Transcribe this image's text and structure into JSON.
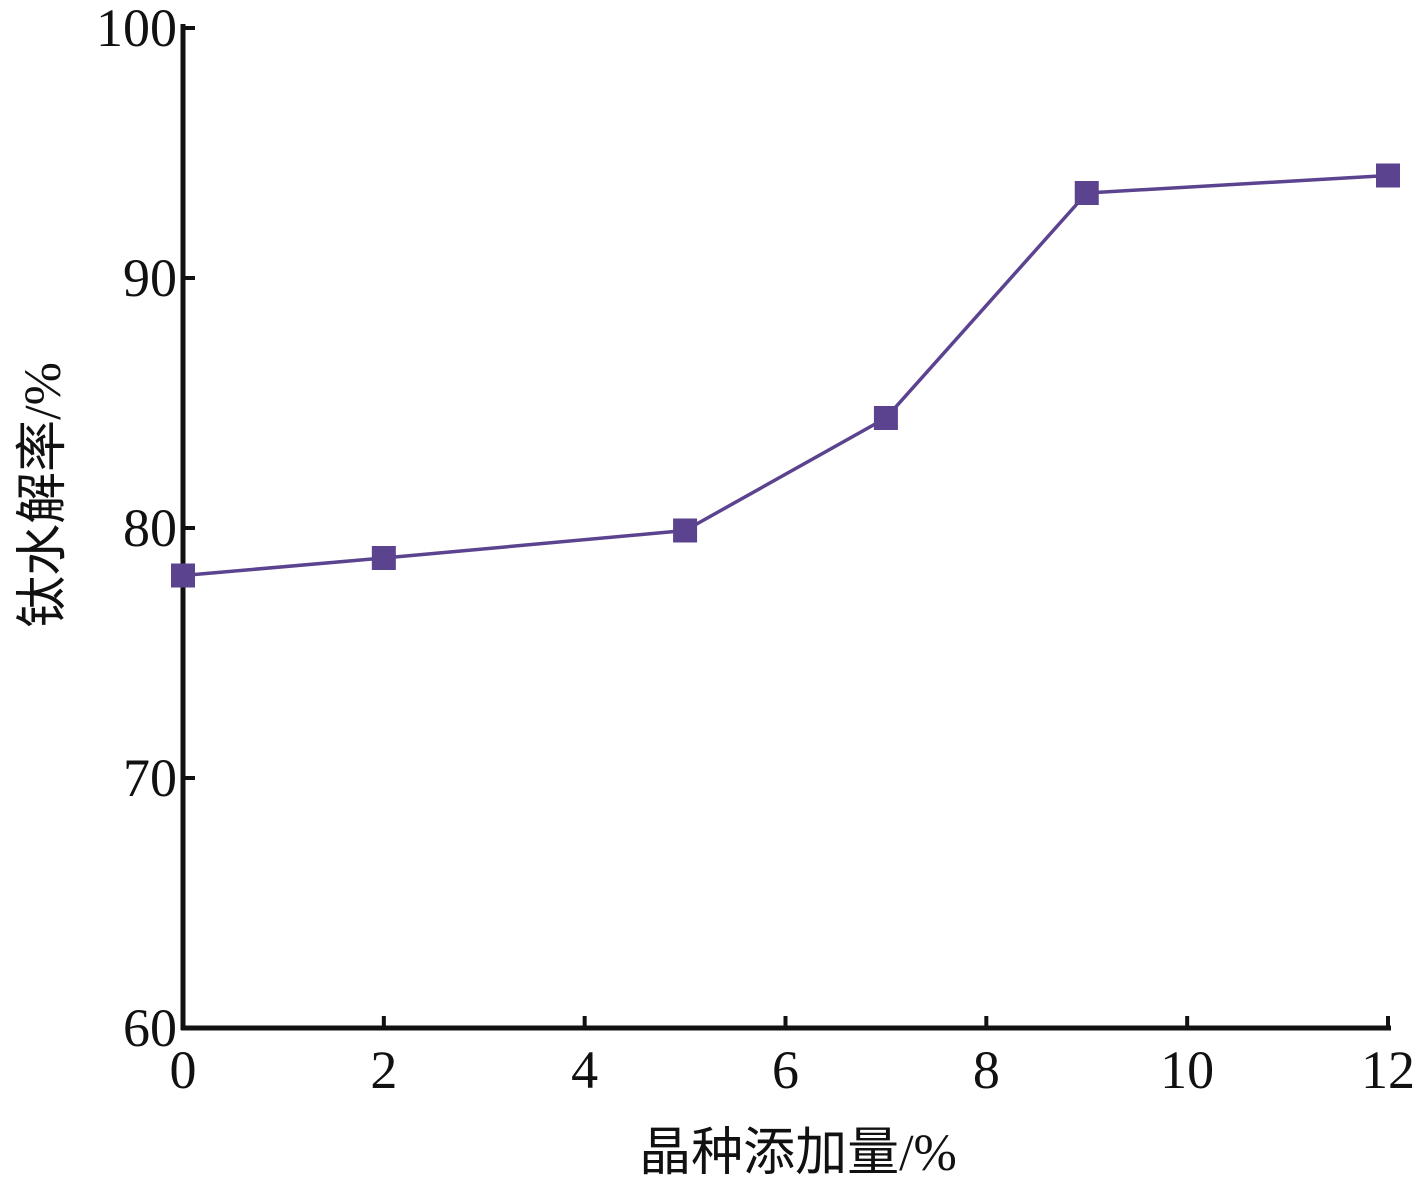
{
  "chart_data": {
    "type": "line",
    "title": "",
    "xlabel": "晶种添加量/%",
    "ylabel": "钛水解率/%",
    "xlim": [
      0,
      12
    ],
    "ylim": [
      60,
      100
    ],
    "xticks": [
      0,
      2,
      4,
      6,
      8,
      10,
      12
    ],
    "xtick_labels": [
      "0",
      "2",
      "4",
      "6",
      "8",
      "10",
      "12"
    ],
    "yticks": [
      60,
      70,
      80,
      90,
      100
    ],
    "ytick_labels": [
      "60",
      "70",
      "80",
      "90",
      "100"
    ],
    "grid": false,
    "legend": "none",
    "series": [
      {
        "color": "#5b4390",
        "marker": "square",
        "x": [
          0,
          2,
          5,
          7,
          9,
          12
        ],
        "y": [
          78.1,
          78.8,
          79.9,
          84.4,
          93.4,
          94.1
        ]
      }
    ]
  }
}
